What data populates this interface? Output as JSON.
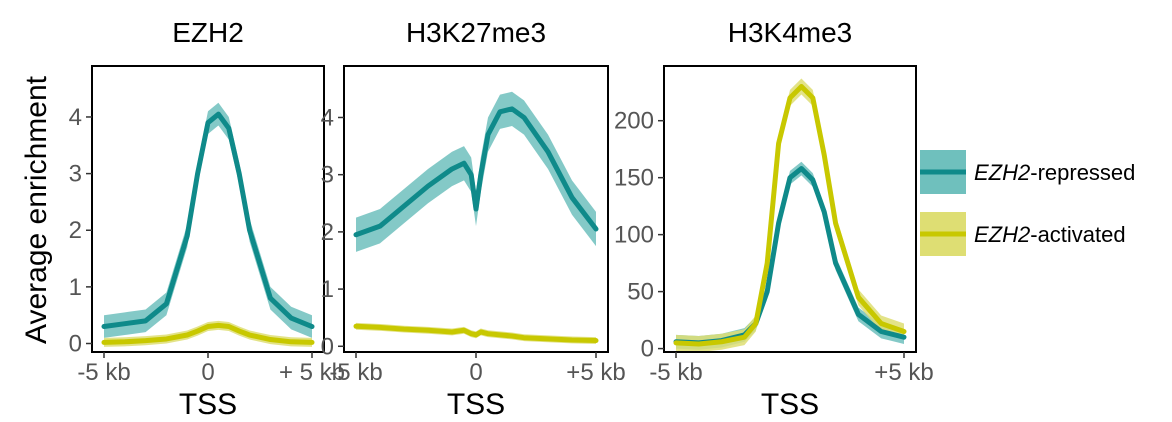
{
  "figure": {
    "ylabel": "Average enrichment",
    "legend": [
      {
        "prefix": "EZH2",
        "suffix": "-repressed",
        "color": "#0f8a8a",
        "band": "#6fc0bd"
      },
      {
        "prefix": "EZH2",
        "suffix": "-activated",
        "color": "#c8c800",
        "band": "#dede73"
      }
    ]
  },
  "chart_data": [
    {
      "type": "line",
      "title": "EZH2",
      "xlabel": "TSS",
      "x_ticks": [
        "-5 kb",
        "0",
        "+ 5 kb"
      ],
      "y_ticks": [
        "0",
        "1",
        "2",
        "3",
        "4"
      ],
      "ylim": [
        -0.15,
        4.9
      ],
      "x": [
        -5,
        -4,
        -3,
        -2,
        -1,
        -0.5,
        0,
        0.5,
        1,
        1.5,
        2,
        3,
        4,
        5
      ],
      "series": [
        {
          "name": "EZH2-repressed",
          "values": [
            0.3,
            0.35,
            0.4,
            0.7,
            1.9,
            3.0,
            3.9,
            4.05,
            3.8,
            3.0,
            2.0,
            0.8,
            0.45,
            0.3
          ],
          "band": 0.2
        },
        {
          "name": "EZH2-activated",
          "values": [
            0.02,
            0.03,
            0.05,
            0.08,
            0.15,
            0.22,
            0.3,
            0.32,
            0.3,
            0.22,
            0.15,
            0.07,
            0.03,
            0.02
          ],
          "band": 0.08
        }
      ]
    },
    {
      "type": "line",
      "title": "H3K27me3",
      "xlabel": "TSS",
      "x_ticks": [
        "-5 kb",
        "0",
        "+5 kb"
      ],
      "y_ticks": [
        "0",
        "1",
        "2",
        "3",
        "4"
      ],
      "ylim": [
        -0.1,
        4.9
      ],
      "x": [
        -5,
        -4,
        -3,
        -2,
        -1,
        -0.5,
        -0.2,
        0,
        0.2,
        0.5,
        1,
        1.5,
        2,
        3,
        4,
        5
      ],
      "series": [
        {
          "name": "EZH2-repressed",
          "values": [
            1.95,
            2.1,
            2.45,
            2.8,
            3.1,
            3.2,
            3.0,
            2.4,
            3.0,
            3.7,
            4.1,
            4.15,
            4.0,
            3.4,
            2.6,
            2.05
          ],
          "band": 0.3
        },
        {
          "name": "EZH2-activated",
          "values": [
            0.35,
            0.33,
            0.3,
            0.28,
            0.25,
            0.28,
            0.22,
            0.2,
            0.25,
            0.22,
            0.2,
            0.18,
            0.15,
            0.13,
            0.11,
            0.1
          ],
          "band": 0.06
        }
      ]
    },
    {
      "type": "line",
      "title": "H3K4me3",
      "xlabel": "TSS",
      "x_ticks": [
        "-5 kb",
        "+5 kb"
      ],
      "y_ticks": [
        "0",
        "50",
        "100",
        "150",
        "200"
      ],
      "ylim": [
        -3,
        248
      ],
      "x": [
        -5,
        -4,
        -3,
        -2,
        -1.5,
        -1,
        -0.5,
        0,
        0.5,
        1,
        1.5,
        2,
        3,
        4,
        5
      ],
      "series": [
        {
          "name": "EZH2-repressed",
          "values": [
            6,
            5,
            7,
            12,
            22,
            50,
            110,
            150,
            158,
            148,
            120,
            75,
            30,
            15,
            10
          ],
          "band": 6
        },
        {
          "name": "EZH2-activated",
          "values": [
            5,
            4,
            6,
            10,
            22,
            75,
            180,
            220,
            230,
            220,
            170,
            110,
            45,
            22,
            15
          ],
          "band": 7
        }
      ]
    }
  ]
}
